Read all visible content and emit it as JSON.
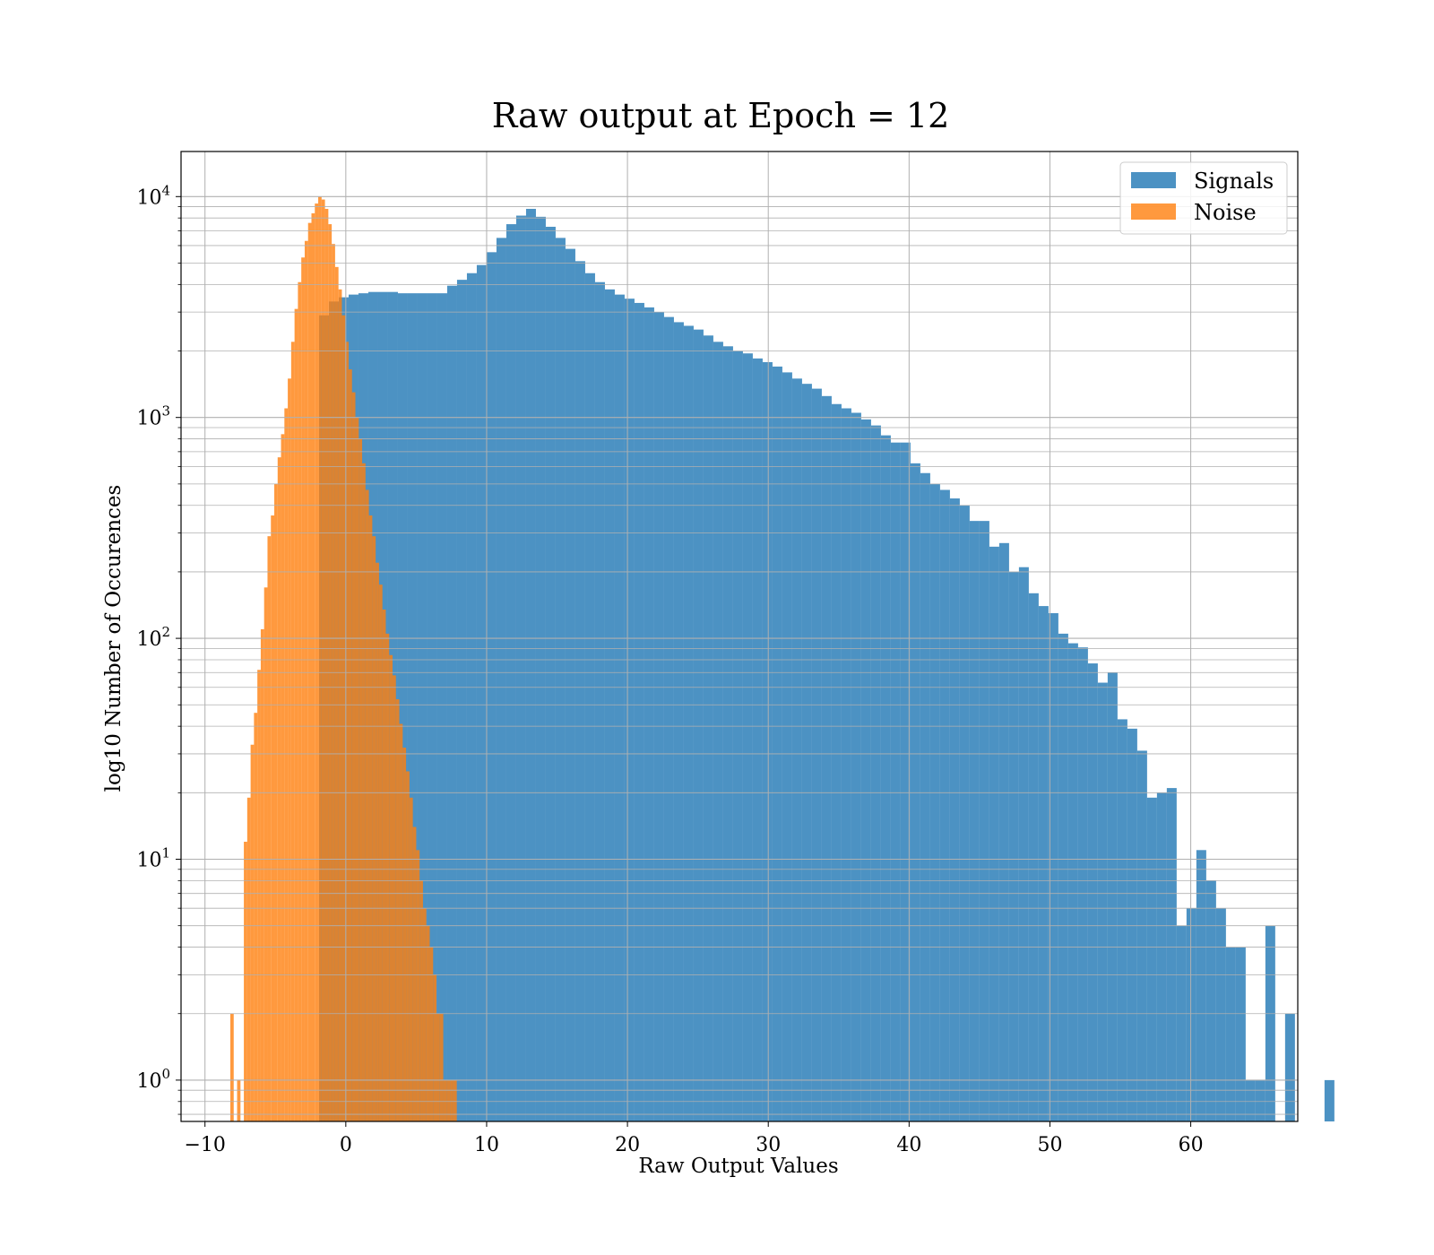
{
  "chart_data": {
    "type": "bar",
    "title": "Raw output at Epoch = 12",
    "xlabel": "Raw Output Values",
    "ylabel": "log10 Number of Occurences",
    "xlim": [
      -11.7,
      67.6
    ],
    "ylim": [
      0.65,
      16000
    ],
    "yscale": "log",
    "grid": true,
    "legend_position": "top-right",
    "x_ticks": [
      -10,
      0,
      10,
      20,
      30,
      40,
      50,
      60
    ],
    "x_tick_labels": [
      "−10",
      "0",
      "10",
      "20",
      "30",
      "40",
      "50",
      "60"
    ],
    "y_ticks": [
      {
        "value": 1,
        "base": "10",
        "exp": "0"
      },
      {
        "value": 10,
        "base": "10",
        "exp": "1"
      },
      {
        "value": 100,
        "base": "10",
        "exp": "2"
      },
      {
        "value": 1000,
        "base": "10",
        "exp": "3"
      },
      {
        "value": 10000,
        "base": "10",
        "exp": "4"
      }
    ],
    "series": [
      {
        "name": "Signals",
        "color": "#1f77b4",
        "opacity": 0.8,
        "bin_start": -1.9,
        "bin_width": 0.7,
        "values": [
          2900,
          3350,
          3500,
          3600,
          3650,
          3700,
          3700,
          3700,
          3650,
          3650,
          3650,
          3650,
          3650,
          3950,
          4200,
          4500,
          4900,
          5600,
          6500,
          7500,
          8200,
          8800,
          8100,
          7300,
          6500,
          5800,
          5100,
          4500,
          4100,
          3800,
          3600,
          3450,
          3300,
          3150,
          3000,
          2850,
          2700,
          2600,
          2500,
          2350,
          2200,
          2100,
          2000,
          1950,
          1850,
          1780,
          1700,
          1600,
          1500,
          1420,
          1350,
          1250,
          1150,
          1100,
          1050,
          980,
          920,
          830,
          770,
          770,
          620,
          560,
          500,
          470,
          430,
          400,
          340,
          340,
          260,
          270,
          200,
          210,
          160,
          140,
          130,
          105,
          95,
          91,
          77,
          63,
          70,
          43,
          39,
          31,
          19,
          20,
          21,
          5,
          6,
          11,
          8,
          6,
          4,
          4,
          1,
          1,
          5,
          0,
          2,
          0,
          0,
          0,
          1
        ]
      },
      {
        "name": "Noise",
        "color": "#ff7f0e",
        "opacity": 0.8,
        "bin_start": -8.2,
        "bin_width": 0.24,
        "values": [
          2,
          0,
          1,
          0,
          12,
          19,
          33,
          46,
          72,
          110,
          170,
          290,
          360,
          500,
          660,
          840,
          1100,
          1500,
          2200,
          3100,
          4100,
          5300,
          6300,
          7600,
          8400,
          9300,
          10000,
          9700,
          8800,
          7500,
          6100,
          4800,
          3800,
          2900,
          2200,
          1650,
          1300,
          1000,
          800,
          620,
          470,
          360,
          290,
          220,
          175,
          135,
          105,
          84,
          68,
          53,
          41,
          32,
          25,
          19,
          14,
          11,
          8,
          6,
          5,
          4,
          3,
          2,
          2,
          1,
          1,
          1,
          1
        ]
      }
    ]
  }
}
